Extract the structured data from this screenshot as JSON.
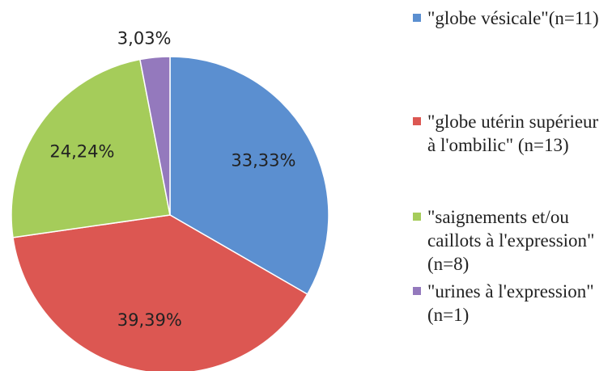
{
  "chart_data": {
    "type": "pie",
    "categories": [
      "\"globe vésicale\"(n=11)",
      "\"globe utérin supérieur à l'ombilic\" (n=13)",
      "\"saignements et/ou caillots à l'expression\" (n=8)",
      "\"urines à l'expression\" (n=1)"
    ],
    "values": [
      33.33,
      39.39,
      24.24,
      3.03
    ],
    "value_labels": [
      "33,33%",
      "39,39%",
      "24,24%",
      "3,03%"
    ],
    "colors": [
      "#5b8fd0",
      "#dc5752",
      "#a5cc5a",
      "#9479bd"
    ],
    "legend": "right"
  }
}
